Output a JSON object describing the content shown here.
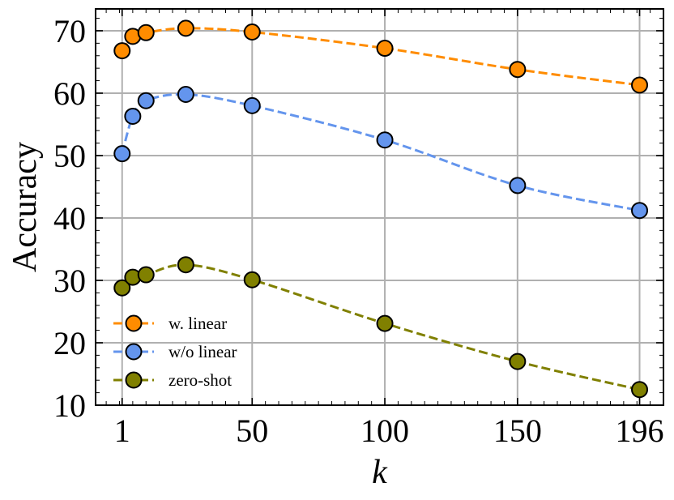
{
  "chart_data": {
    "type": "line",
    "xlabel": "k",
    "ylabel": "Accuracy",
    "xlim": [
      -9,
      205
    ],
    "ylim": [
      10,
      73.5
    ],
    "xticks": [
      1,
      50,
      100,
      150,
      196
    ],
    "yticks": [
      10,
      20,
      30,
      40,
      50,
      60,
      70
    ],
    "grid": true,
    "legend_position": "bottom-left",
    "series": [
      {
        "name": "w. linear",
        "color": "#ff8c00",
        "x": [
          1,
          5,
          10,
          25,
          50,
          100,
          150,
          196
        ],
        "y": [
          66.8,
          69.1,
          69.7,
          70.4,
          69.8,
          67.2,
          63.8,
          61.3
        ]
      },
      {
        "name": "w/o linear",
        "color": "#6495ed",
        "x": [
          1,
          5,
          10,
          25,
          50,
          100,
          150,
          196
        ],
        "y": [
          50.3,
          56.3,
          58.8,
          59.8,
          58.0,
          52.5,
          45.2,
          41.2
        ]
      },
      {
        "name": "zero-shot",
        "color": "#808000",
        "x": [
          1,
          5,
          10,
          25,
          50,
          100,
          150,
          196
        ],
        "y": [
          28.8,
          30.5,
          30.9,
          32.5,
          30.1,
          23.1,
          17.0,
          12.5
        ]
      }
    ]
  }
}
